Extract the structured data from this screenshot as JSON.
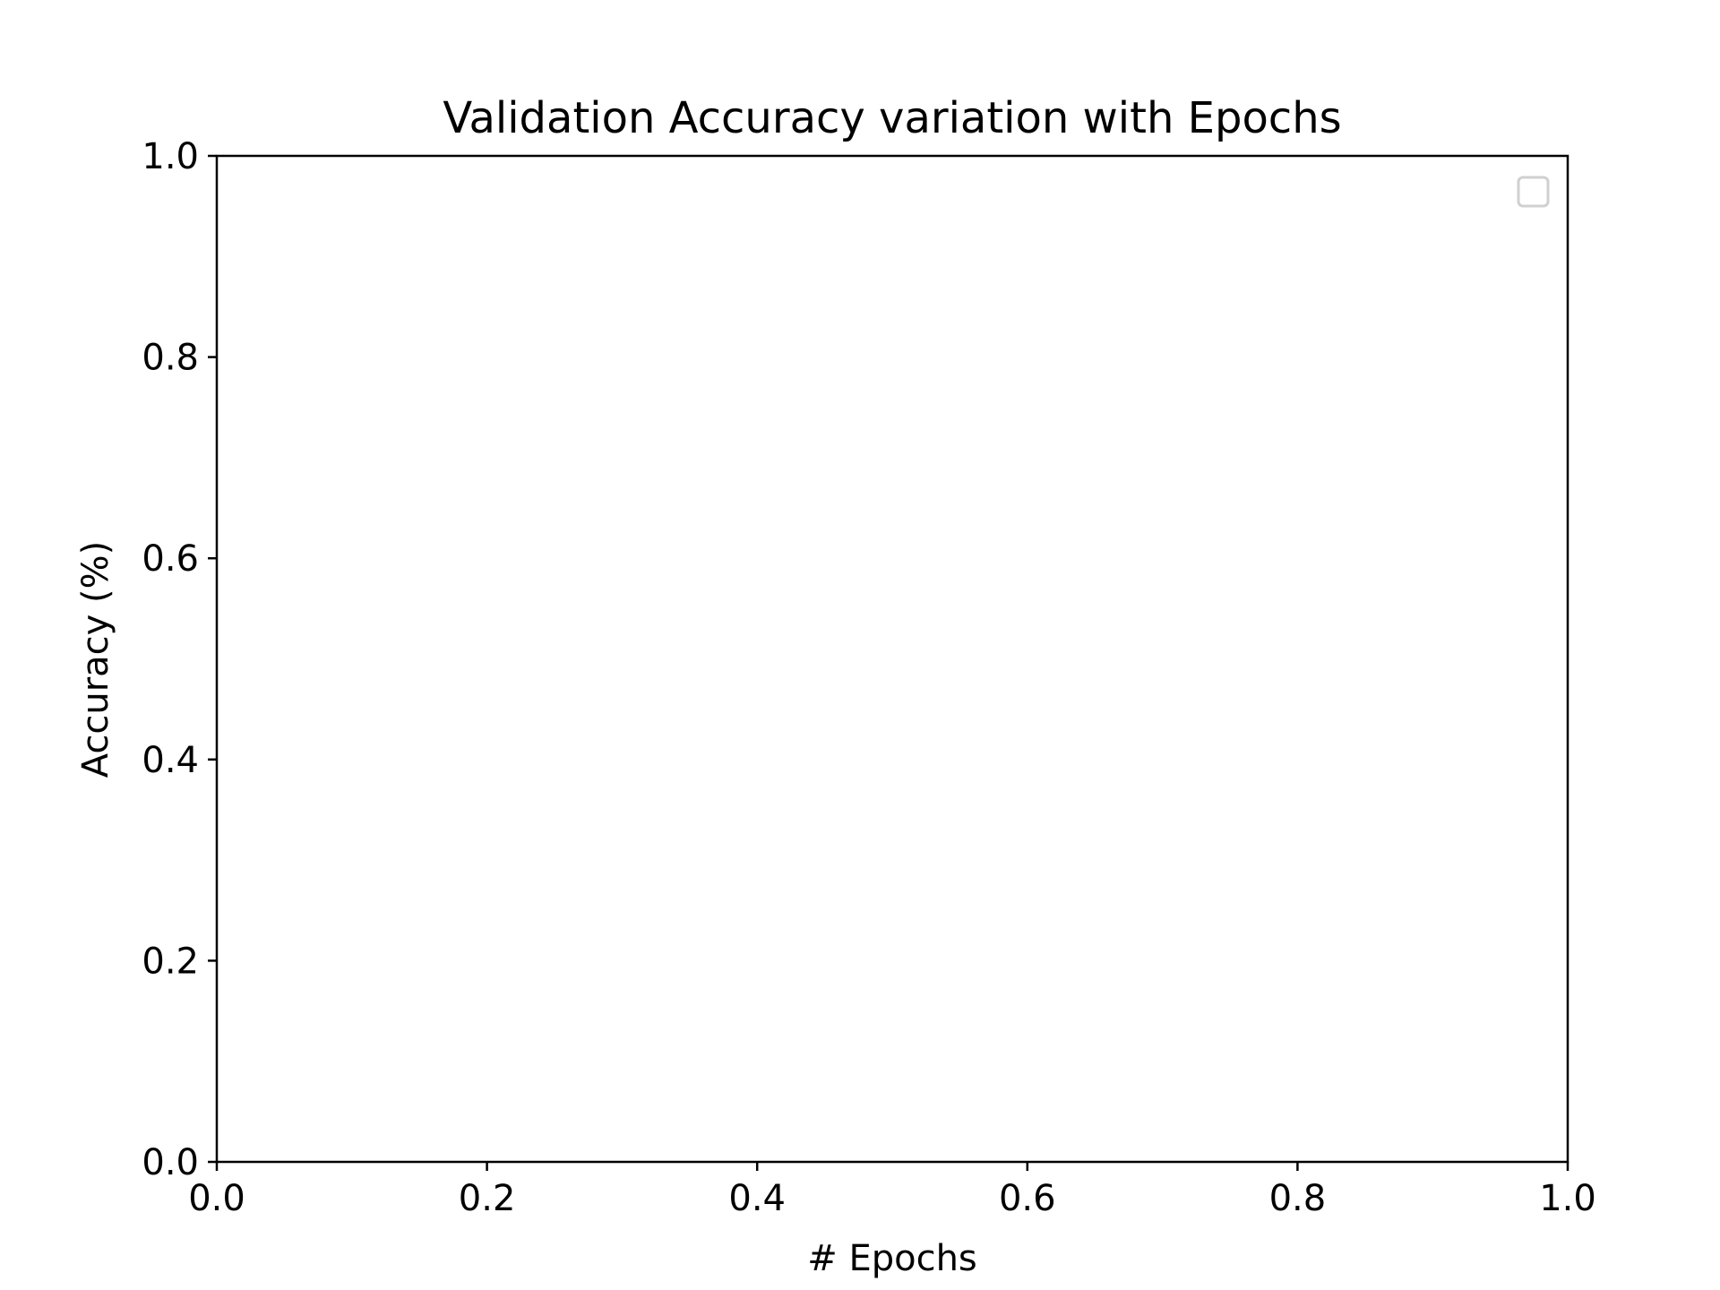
{
  "chart_data": {
    "type": "line",
    "title": "Validation Accuracy variation with Epochs",
    "xlabel": "# Epochs",
    "ylabel": "Accuracy (%)",
    "xlim": [
      0.0,
      1.0
    ],
    "ylim": [
      0.0,
      1.0
    ],
    "xticks": [
      "0.0",
      "0.2",
      "0.4",
      "0.6",
      "0.8",
      "1.0"
    ],
    "yticks": [
      "0.0",
      "0.2",
      "0.4",
      "0.6",
      "0.8",
      "1.0"
    ],
    "series": [],
    "grid": false,
    "legend": {
      "placement": "upper-right",
      "entries": []
    },
    "colors": {
      "axes": "#000000",
      "legend_border": "#d0d0d0",
      "background": "#ffffff"
    }
  }
}
